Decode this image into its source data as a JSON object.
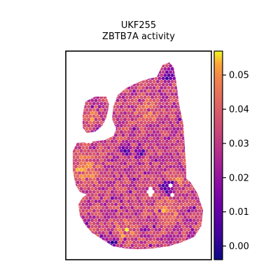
{
  "chart_data": {
    "type": "heatmap",
    "title": "UKF255",
    "subtitle": "ZBTB7A activity",
    "xlabel": "",
    "ylabel": "",
    "grid": false,
    "colormap": "plasma",
    "colorbar": {
      "range": [
        -0.004,
        0.057
      ],
      "ticks": [
        0.0,
        0.01,
        0.02,
        0.03,
        0.04,
        0.05
      ],
      "tick_labels": [
        "0.00",
        "0.01",
        "0.02",
        "0.03",
        "0.04",
        "0.05"
      ],
      "position": "right"
    },
    "value_summary": {
      "min": -0.004,
      "max": 0.057,
      "typical": 0.035
    }
  }
}
